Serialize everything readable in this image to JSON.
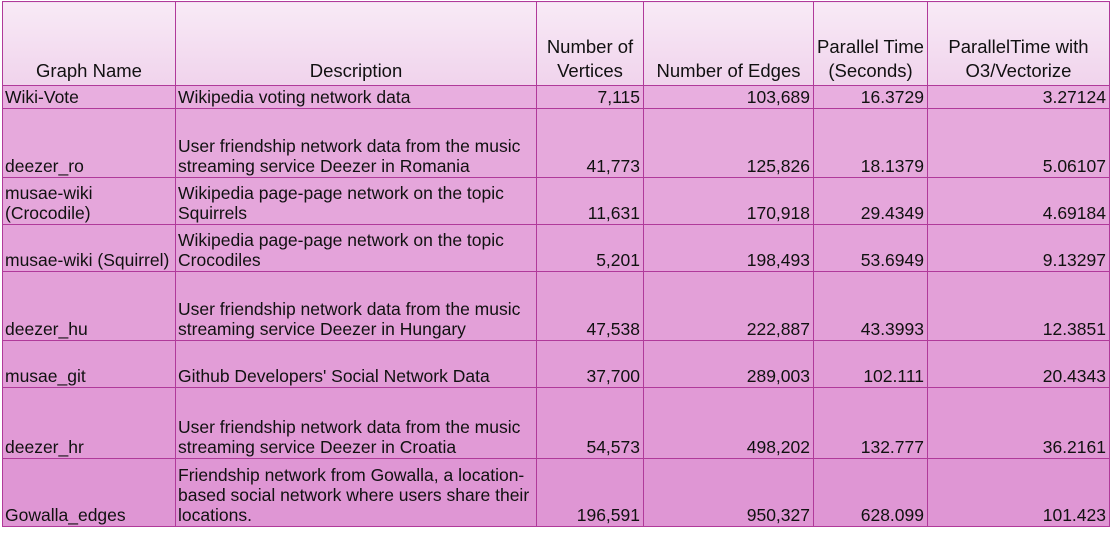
{
  "table": {
    "headers": [
      "Graph Name",
      "Description",
      "Number of Vertices",
      "Number of Edges",
      "Parallel Time (Seconds)",
      "ParallelTime with O3/Vectorize"
    ],
    "rows": [
      {
        "name": "Wiki-Vote",
        "description": "Wikipedia voting network data",
        "vertices": "7,115",
        "edges": "103,689",
        "time": "16.3729",
        "time_o3": "3.27124"
      },
      {
        "name": "deezer_ro",
        "description": "User friendship network data from the music streaming service Deezer in Romania",
        "vertices": "41,773",
        "edges": "125,826",
        "time": "18.1379",
        "time_o3": "5.06107"
      },
      {
        "name": "musae-wiki (Crocodile)",
        "description": "Wikipedia page-page network on the topic Squirrels",
        "vertices": "11,631",
        "edges": "170,918",
        "time": "29.4349",
        "time_o3": "4.69184"
      },
      {
        "name": "musae-wiki (Squirrel)",
        "description": "Wikipedia page-page network on the topic Crocodiles",
        "vertices": "5,201",
        "edges": "198,493",
        "time": "53.6949",
        "time_o3": "9.13297"
      },
      {
        "name": "deezer_hu",
        "description": "User friendship network data from the music streaming service Deezer in Hungary",
        "vertices": "47,538",
        "edges": "222,887",
        "time": "43.3993",
        "time_o3": "12.3851"
      },
      {
        "name": "musae_git",
        "description": "Github Developers' Social Network Data",
        "vertices": "37,700",
        "edges": "289,003",
        "time": "102.111",
        "time_o3": "20.4343"
      },
      {
        "name": "deezer_hr",
        "description": "User friendship network data from the music streaming service Deezer in Croatia",
        "vertices": "54,573",
        "edges": "498,202",
        "time": "132.777",
        "time_o3": "36.2161"
      },
      {
        "name": "Gowalla_edges",
        "description": "Friendship network from Gowalla, a location-based social network where users share their locations.",
        "vertices": "196,591",
        "edges": "950,327",
        "time": "628.099",
        "time_o3": "101.423"
      }
    ]
  }
}
